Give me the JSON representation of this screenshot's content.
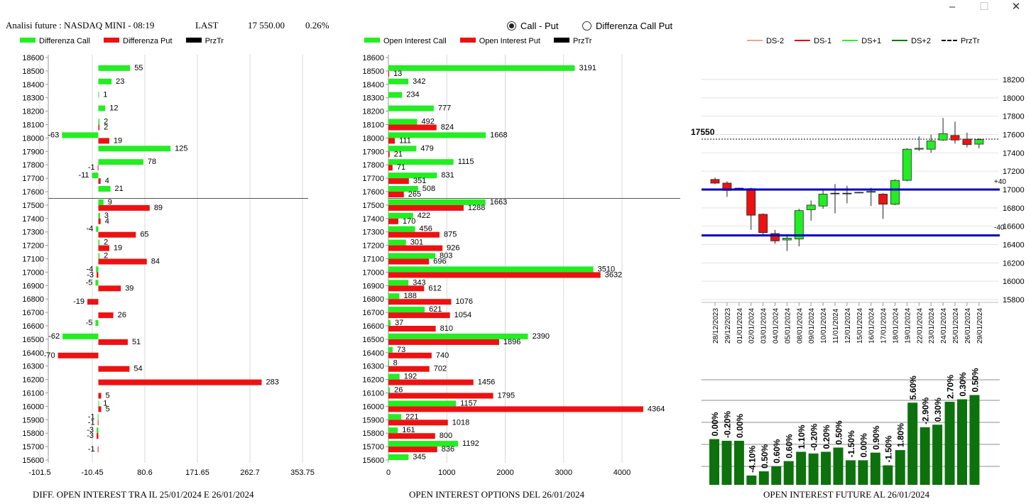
{
  "header": {
    "title": "Analisi future : NASDAQ MINI - 08:19",
    "last_label": "LAST",
    "last_value": "17 550.00",
    "change": "0.26%"
  },
  "window": {
    "minimize": "–",
    "maximize": "☐",
    "close": "✕"
  },
  "radios": [
    {
      "label": "Call - Put",
      "selected": true
    },
    {
      "label": "Differenza Call Put",
      "selected": false
    }
  ],
  "colors": {
    "call": "#22ee22",
    "put": "#ee1111",
    "przTr": "#000000",
    "ds_minus2": "#f4a582",
    "ds_minus1": "#dd0000",
    "ds_plus1": "#33ee33",
    "ds_plus2": "#007700",
    "level": "#0000bb",
    "fut_bar": "#0d720d"
  },
  "chart_data": [
    {
      "id": "diff",
      "type": "bar",
      "orientation": "horizontal",
      "title": "DIFF. OPEN INTEREST TRA IL 25/01/2024 E 26/01/2024",
      "legend": [
        "Differenza Call",
        "Differenza Put",
        "PrzTr"
      ],
      "strikes": [
        18600,
        18500,
        18400,
        18300,
        18200,
        18100,
        18000,
        17900,
        17800,
        17700,
        17600,
        17500,
        17400,
        17300,
        17200,
        17100,
        17000,
        16900,
        16800,
        16700,
        16600,
        16500,
        16400,
        16300,
        16200,
        16100,
        16000,
        15900,
        15800,
        15700,
        15600
      ],
      "call": [
        null,
        55,
        23,
        1,
        12,
        2,
        -63,
        125,
        78,
        -11,
        21,
        9,
        3,
        -4,
        2,
        2,
        -4,
        -5,
        null,
        null,
        -5,
        -62,
        null,
        null,
        null,
        null,
        1,
        -1,
        -3,
        null,
        null
      ],
      "put": [
        null,
        null,
        null,
        null,
        null,
        2,
        19,
        null,
        -1,
        4,
        null,
        89,
        4,
        65,
        19,
        84,
        -3,
        39,
        -19,
        26,
        null,
        51,
        -70,
        54,
        283,
        5,
        5,
        -1,
        -3,
        -1,
        null
      ],
      "xticks": [
        "-101.5",
        "-10.45",
        "80.6",
        "171.65",
        "262.7",
        "353.75"
      ],
      "xlim": [
        -101.5,
        353.75
      ],
      "przTr_strike": 17550
    },
    {
      "id": "oi",
      "type": "bar",
      "orientation": "horizontal",
      "title": "OPEN INTEREST OPTIONS DEL 26/01/2024",
      "legend": [
        "Open Interest Call",
        "Open Interest Put",
        "PrzTr"
      ],
      "strikes": [
        18600,
        18500,
        18400,
        18300,
        18200,
        18100,
        18000,
        17900,
        17800,
        17700,
        17600,
        17500,
        17400,
        17300,
        17200,
        17100,
        17000,
        16900,
        16800,
        16700,
        16600,
        16500,
        16400,
        16300,
        16200,
        16100,
        16000,
        15900,
        15800,
        15700,
        15600
      ],
      "call": [
        null,
        3191,
        342,
        234,
        777,
        492,
        1668,
        479,
        1115,
        831,
        508,
        1663,
        422,
        456,
        301,
        803,
        3510,
        343,
        188,
        621,
        37,
        2390,
        73,
        8,
        192,
        26,
        1157,
        221,
        161,
        1192,
        345
      ],
      "put": [
        null,
        13,
        null,
        null,
        null,
        824,
        111,
        21,
        71,
        351,
        265,
        1288,
        170,
        875,
        926,
        696,
        3632,
        612,
        1076,
        1054,
        810,
        1896,
        740,
        702,
        1456,
        1795,
        4364,
        1018,
        800,
        836,
        null
      ],
      "xticks": [
        "0",
        "1000",
        "2000",
        "3000",
        "4000"
      ],
      "xlim": [
        0,
        4900
      ],
      "przTr_strike": 17550
    },
    {
      "id": "candles",
      "type": "candlestick",
      "legend": [
        "DS-2",
        "DS-1",
        "DS+1",
        "DS+2",
        "PrzTr"
      ],
      "dates": [
        "28/12/2023",
        "29/12/2023",
        "01/01/2024",
        "02/01/2024",
        "03/01/2024",
        "04/01/2024",
        "05/01/2024",
        "08/01/2024",
        "09/01/2024",
        "10/01/2024",
        "11/01/2024",
        "12/01/2024",
        "15/01/2024",
        "16/01/2024",
        "17/01/2024",
        "18/01/2024",
        "19/01/2024",
        "22/01/2024",
        "23/01/2024",
        "24/01/2024",
        "25/01/2024",
        "26/01/2024",
        "29/01/2024"
      ],
      "open": [
        17110,
        17070,
        17015,
        17010,
        16730,
        16520,
        16450,
        16460,
        16780,
        16820,
        16960,
        16960,
        16965,
        16970,
        16950,
        16840,
        17100,
        17440,
        17440,
        17540,
        17590,
        17550,
        17495
      ],
      "close": [
        17070,
        16990,
        17015,
        16720,
        16530,
        16440,
        16470,
        16770,
        16830,
        16950,
        16960,
        16960,
        16970,
        16980,
        16840,
        17100,
        17440,
        17450,
        17530,
        17610,
        17540,
        17490,
        17545
      ],
      "high": [
        17130,
        17090,
        17020,
        17020,
        16740,
        16560,
        16510,
        16790,
        16880,
        16990,
        17060,
        17040,
        16975,
        17020,
        16960,
        17110,
        17450,
        17580,
        17600,
        17780,
        17740,
        17620,
        17560
      ],
      "low": [
        17060,
        16920,
        17005,
        16560,
        16510,
        16410,
        16330,
        16380,
        16660,
        16790,
        16740,
        16850,
        16960,
        16820,
        16680,
        16830,
        17090,
        17420,
        17400,
        17530,
        17500,
        17460,
        17450
      ],
      "yticks": [
        "18200",
        "18000",
        "17800",
        "17600",
        "17400",
        "17200",
        "17000",
        "16800",
        "16600",
        "16400",
        "16200",
        "16000",
        "15800"
      ],
      "ylim": [
        15800,
        18250
      ],
      "levels": [
        17000,
        16500
      ],
      "level_labels": [
        "+40",
        "-40"
      ],
      "przTr": 17550,
      "przTr_label": "17550"
    },
    {
      "id": "future_oi",
      "type": "bar",
      "title": "OPEN INTEREST FUTURE AL 26/01/2024",
      "labels": [
        "0.00%",
        "-0.20%",
        "0.00%",
        "-4.10%",
        "0.50%",
        "0.60%",
        "0.60%",
        "1.10%",
        "-0.20%",
        "0.20%",
        "0.50%",
        "-1.50%",
        "0.00%",
        "0.90%",
        "-1.50%",
        "1.80%",
        "5.60%",
        "-2.90%",
        "0.30%",
        "2.70%",
        "0.30%",
        "0.50%"
      ],
      "values": [
        100.0,
        99.8,
        99.8,
        95.7,
        96.2,
        96.8,
        97.4,
        98.5,
        98.3,
        98.5,
        99.0,
        97.5,
        97.5,
        98.4,
        96.9,
        98.7,
        104.3,
        101.4,
        101.7,
        104.4,
        104.7,
        105.2
      ],
      "ylim": [
        94.6,
        107
      ]
    }
  ]
}
